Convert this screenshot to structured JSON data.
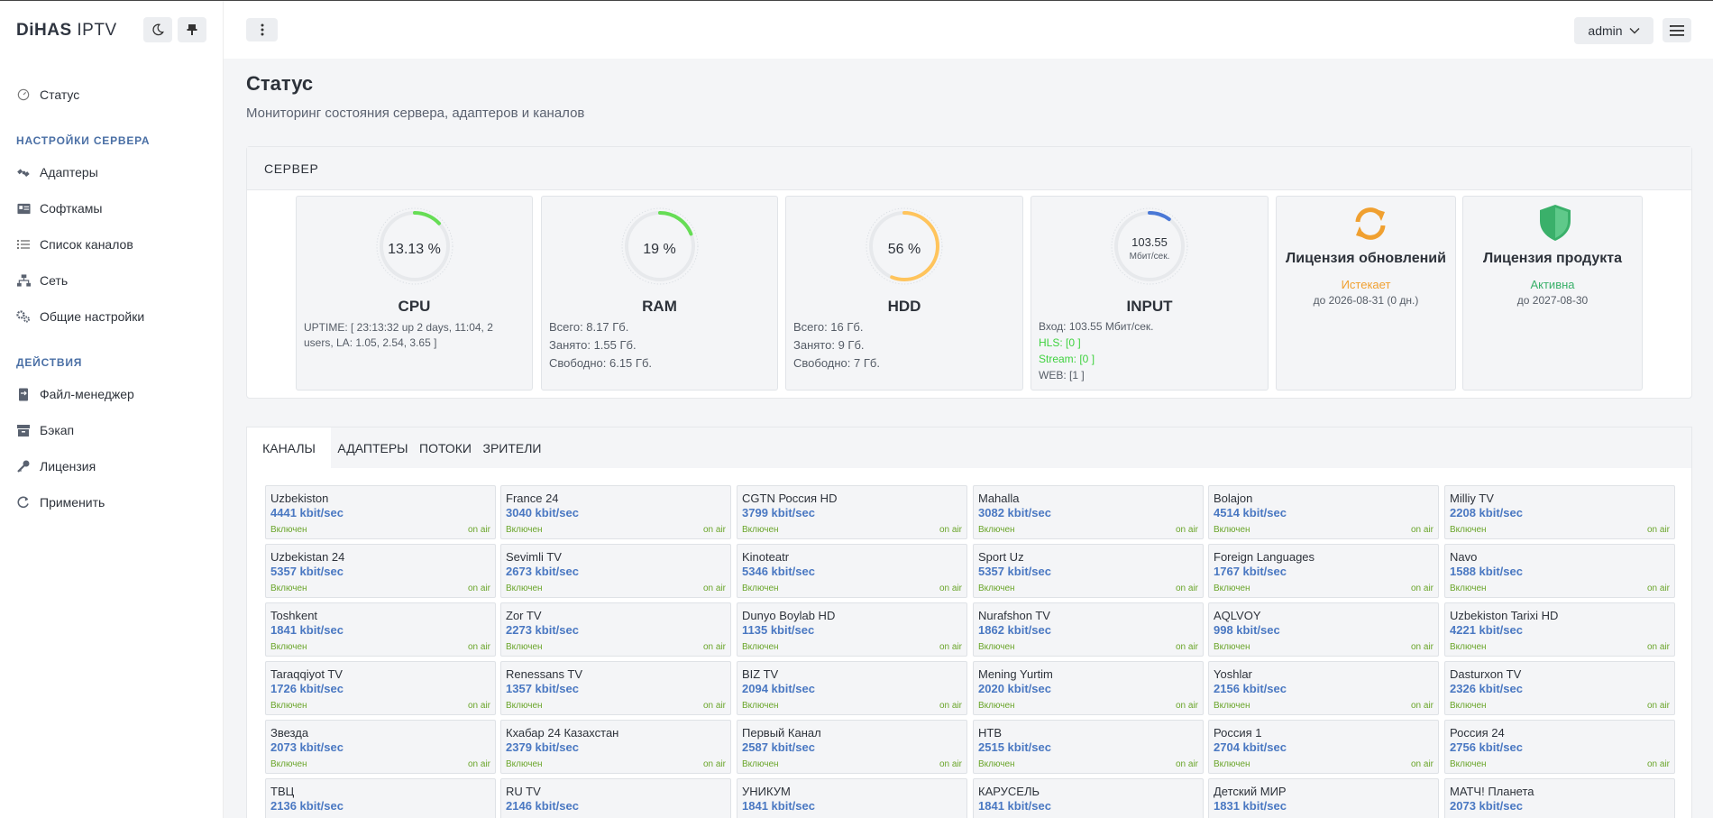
{
  "brand": {
    "bold": "DiHAS",
    "light": "IPTV"
  },
  "sidebar": {
    "status": "Статус",
    "section_server": "НАСТРОЙКИ СЕРВЕРА",
    "adapters": "Адаптеры",
    "softcams": "Софткамы",
    "channels": "Список каналов",
    "network": "Сеть",
    "general": "Общие настройки",
    "section_actions": "ДЕЙСТВИЯ",
    "files": "Файл-менеджер",
    "backup": "Бэкап",
    "license": "Лицензия",
    "apply": "Применить"
  },
  "header": {
    "user": "admin"
  },
  "page": {
    "title": "Статус",
    "subtitle": "Мониторинг состояния сервера, адаптеров и каналов"
  },
  "server": {
    "title": "СЕРВЕР",
    "cpu": {
      "value": "13.13 %",
      "name": "CPU",
      "fraction": 0.13,
      "color": "#66dd55",
      "line1": "UPTIME: [ 23:13:32 up 2 days, 11:04, 2",
      "line2": "users, LA: 1.05, 2.54, 3.65 ]"
    },
    "ram": {
      "value": "19 %",
      "name": "RAM",
      "fraction": 0.19,
      "color": "#66dd55",
      "total": "Всего: 8.17 Гб.",
      "used": "Занято: 1.55 Гб.",
      "free": "Свободно: 6.15 Гб."
    },
    "hdd": {
      "value": "56 %",
      "name": "HDD",
      "fraction": 0.56,
      "color": "#ffc45c",
      "total": "Всего: 16 Гб.",
      "used": "Занято: 9 Гб.",
      "free": "Свободно: 7 Гб."
    },
    "input": {
      "value": "103.55",
      "unit": "Мбит/сек.",
      "name": "INPUT",
      "fraction": 0.1,
      "color": "#4a78d6",
      "line_in": "Вход: 103.55 Мбит/сек.",
      "line_hls": "HLS: [0 ]",
      "line_stream": "Stream: [0 ]",
      "line_web": "WEB: [1 ]"
    },
    "lic_updates": {
      "name": "Лицензия обновлений",
      "status": "Истекает",
      "until": "до 2026-08-31 (0 дн.)",
      "color": "#f0a030"
    },
    "lic_product": {
      "name": "Лицензия продукта",
      "status": "Активна",
      "until": "до 2027-08-30",
      "color": "#3ab06a"
    }
  },
  "tabs": [
    "КАНАЛЫ",
    "АДАПТЕРЫ",
    "ПОТОКИ",
    "ЗРИТЕЛИ"
  ],
  "channel_state": "Включен",
  "channel_air": "on air",
  "channels": [
    {
      "name": "Uzbekiston",
      "rate": "4441 kbit/sec"
    },
    {
      "name": "France 24",
      "rate": "3040 kbit/sec"
    },
    {
      "name": "CGTN Россия HD",
      "rate": "3799 kbit/sec"
    },
    {
      "name": "Mahalla",
      "rate": "3082 kbit/sec"
    },
    {
      "name": "Bolajon",
      "rate": "4514 kbit/sec"
    },
    {
      "name": "Milliy TV",
      "rate": "2208 kbit/sec"
    },
    {
      "name": "Uzbekistan 24",
      "rate": "5357 kbit/sec"
    },
    {
      "name": "Sevimli TV",
      "rate": "2673 kbit/sec"
    },
    {
      "name": "Kinoteatr",
      "rate": "5346 kbit/sec"
    },
    {
      "name": "Sport Uz",
      "rate": "5357 kbit/sec"
    },
    {
      "name": "Foreign Languages",
      "rate": "1767 kbit/sec"
    },
    {
      "name": "Navo",
      "rate": "1588 kbit/sec"
    },
    {
      "name": "Toshkent",
      "rate": "1841 kbit/sec"
    },
    {
      "name": "Zor TV",
      "rate": "2273 kbit/sec"
    },
    {
      "name": "Dunyo Boylab HD",
      "rate": "1135 kbit/sec"
    },
    {
      "name": "Nurafshon TV",
      "rate": "1862 kbit/sec"
    },
    {
      "name": "AQLVOY",
      "rate": "998 kbit/sec"
    },
    {
      "name": "Uzbekiston Tarixi HD",
      "rate": "4221 kbit/sec"
    },
    {
      "name": "Taraqqiyot TV",
      "rate": "1726 kbit/sec"
    },
    {
      "name": "Renessans TV",
      "rate": "1357 kbit/sec"
    },
    {
      "name": "BIZ TV",
      "rate": "2094 kbit/sec"
    },
    {
      "name": "Mening Yurtim",
      "rate": "2020 kbit/sec"
    },
    {
      "name": "Yoshlar",
      "rate": "2156 kbit/sec"
    },
    {
      "name": "Dasturxon TV",
      "rate": "2326 kbit/sec"
    },
    {
      "name": "Звезда",
      "rate": "2073 kbit/sec"
    },
    {
      "name": "Кхабар 24 Казахстан",
      "rate": "2379 kbit/sec"
    },
    {
      "name": "Первый Канал",
      "rate": "2587 kbit/sec"
    },
    {
      "name": "НТВ",
      "rate": "2515 kbit/sec"
    },
    {
      "name": "Россия 1",
      "rate": "2704 kbit/sec"
    },
    {
      "name": "Россия 24",
      "rate": "2756 kbit/sec"
    },
    {
      "name": "ТВЦ",
      "rate": "2136 kbit/sec"
    },
    {
      "name": "RU TV",
      "rate": "2146 kbit/sec"
    },
    {
      "name": "УНИКУМ",
      "rate": "1841 kbit/sec"
    },
    {
      "name": "КАРУСЕЛЬ",
      "rate": "1841 kbit/sec"
    },
    {
      "name": "Детский МИР",
      "rate": "1831 kbit/sec"
    },
    {
      "name": "МАТЧ! Планета",
      "rate": "2073 kbit/sec"
    }
  ]
}
